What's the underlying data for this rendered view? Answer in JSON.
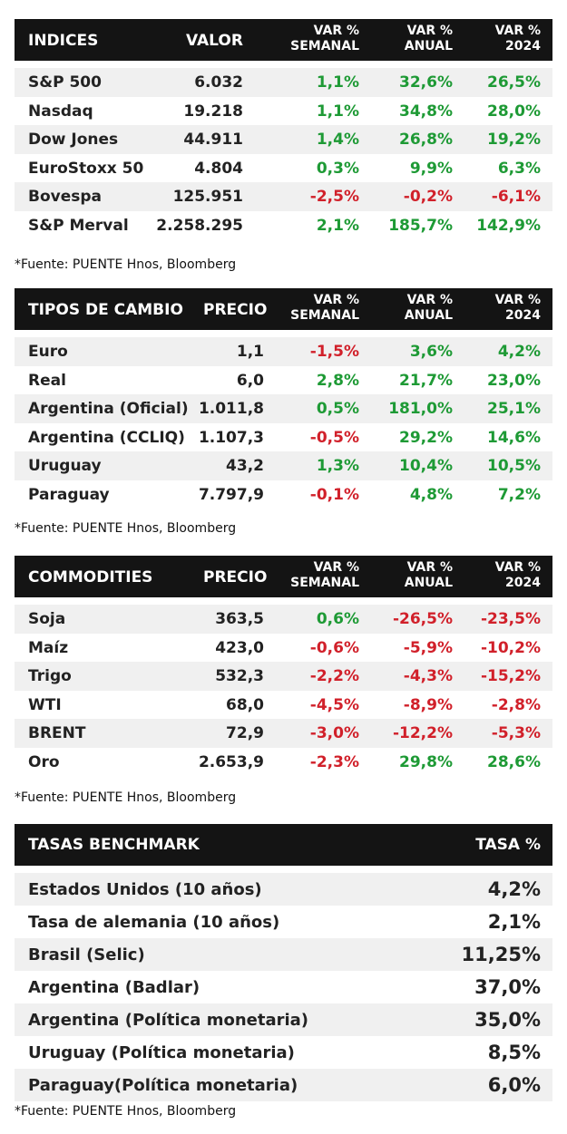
{
  "indices": {
    "headers": {
      "name": "INDICES",
      "value": "VALOR",
      "weekly": [
        "VAR %",
        "SEMANAL"
      ],
      "annual": [
        "VAR %",
        "ANUAL"
      ],
      "ytd": [
        "VAR %",
        "2024"
      ]
    },
    "rows": [
      {
        "name": "S&P 500",
        "value": "6.032",
        "weekly": "1,1%",
        "annual": "32,6%",
        "ytd": "26,5%"
      },
      {
        "name": "Nasdaq",
        "value": "19.218",
        "weekly": "1,1%",
        "annual": "34,8%",
        "ytd": "28,0%"
      },
      {
        "name": "Dow Jones",
        "value": "44.911",
        "weekly": "1,4%",
        "annual": "26,8%",
        "ytd": "19,2%"
      },
      {
        "name": "EuroStoxx 50",
        "value": "4.804",
        "weekly": "0,3%",
        "annual": "9,9%",
        "ytd": "6,3%"
      },
      {
        "name": "Bovespa",
        "value": "125.951",
        "weekly": "-2,5%",
        "annual": "-0,2%",
        "ytd": "-6,1%"
      },
      {
        "name": "S&P Merval",
        "value": "2.258.295",
        "weekly": "2,1%",
        "annual": "185,7%",
        "ytd": "142,9%"
      }
    ],
    "source": "*Fuente: PUENTE Hnos, Bloomberg"
  },
  "fx": {
    "headers": {
      "name": "TIPOS DE CAMBIO",
      "value": "PRECIO",
      "weekly": [
        "VAR %",
        "SEMANAL"
      ],
      "annual": [
        "VAR %",
        "ANUAL"
      ],
      "ytd": [
        "VAR %",
        "2024"
      ]
    },
    "rows": [
      {
        "name": "Euro",
        "value": "1,1",
        "weekly": "-1,5%",
        "annual": "3,6%",
        "ytd": "4,2%"
      },
      {
        "name": "Real",
        "value": "6,0",
        "weekly": "2,8%",
        "annual": "21,7%",
        "ytd": "23,0%"
      },
      {
        "name": "Argentina (Oficial)",
        "value": "1.011,8",
        "weekly": "0,5%",
        "annual": "181,0%",
        "ytd": "25,1%"
      },
      {
        "name": "Argentina (CCLIQ)",
        "value": "1.107,3",
        "weekly": "-0,5%",
        "annual": "29,2%",
        "ytd": "14,6%"
      },
      {
        "name": "Uruguay",
        "value": "43,2",
        "weekly": "1,3%",
        "annual": "10,4%",
        "ytd": "10,5%"
      },
      {
        "name": "Paraguay",
        "value": "7.797,9",
        "weekly": "-0,1%",
        "annual": "4,8%",
        "ytd": "7,2%"
      }
    ],
    "source": "*Fuente: PUENTE Hnos, Bloomberg"
  },
  "commodities": {
    "headers": {
      "name": "COMMODITIES",
      "value": "PRECIO",
      "weekly": [
        "VAR %",
        "SEMANAL"
      ],
      "annual": [
        "VAR %",
        "ANUAL"
      ],
      "ytd": [
        "VAR %",
        "2024"
      ]
    },
    "rows": [
      {
        "name": "Soja",
        "value": "363,5",
        "weekly": "0,6%",
        "annual": "-26,5%",
        "ytd": "-23,5%"
      },
      {
        "name": "Maíz",
        "value": "423,0",
        "weekly": "-0,6%",
        "annual": "-5,9%",
        "ytd": "-10,2%"
      },
      {
        "name": "Trigo",
        "value": "532,3",
        "weekly": "-2,2%",
        "annual": "-4,3%",
        "ytd": "-15,2%"
      },
      {
        "name": "WTI",
        "value": "68,0",
        "weekly": "-4,5%",
        "annual": "-8,9%",
        "ytd": "-2,8%"
      },
      {
        "name": "BRENT",
        "value": "72,9",
        "weekly": "-3,0%",
        "annual": "-12,2%",
        "ytd": "-5,3%"
      },
      {
        "name": "Oro",
        "value": "2.653,9",
        "weekly": "-2,3%",
        "annual": "29,8%",
        "ytd": "28,6%"
      }
    ],
    "source": "*Fuente: PUENTE Hnos, Bloomberg"
  },
  "rates": {
    "headers": {
      "name": "TASAS BENCHMARK",
      "rate": "TASA %"
    },
    "rows": [
      {
        "name": "Estados Unidos (10 años)",
        "rate": "4,2%"
      },
      {
        "name": "Tasa de alemania (10 años)",
        "rate": "2,1%"
      },
      {
        "name": "Brasil (Selic)",
        "rate": "11,25%"
      },
      {
        "name": "Argentina (Badlar)",
        "rate": "37,0%"
      },
      {
        "name": "Argentina (Política monetaria)",
        "rate": "35,0%"
      },
      {
        "name": "Uruguay (Política monetaria)",
        "rate": "8,5%"
      },
      {
        "name": "Paraguay(Política monetaria)",
        "rate": "6,0%"
      }
    ],
    "source": "*Fuente: PUENTE Hnos, Bloomberg"
  },
  "colors": {
    "positive": "#1e9a35",
    "negative": "#d1202a",
    "header_bg": "#141414",
    "alt_row": "#f0f0f0"
  }
}
